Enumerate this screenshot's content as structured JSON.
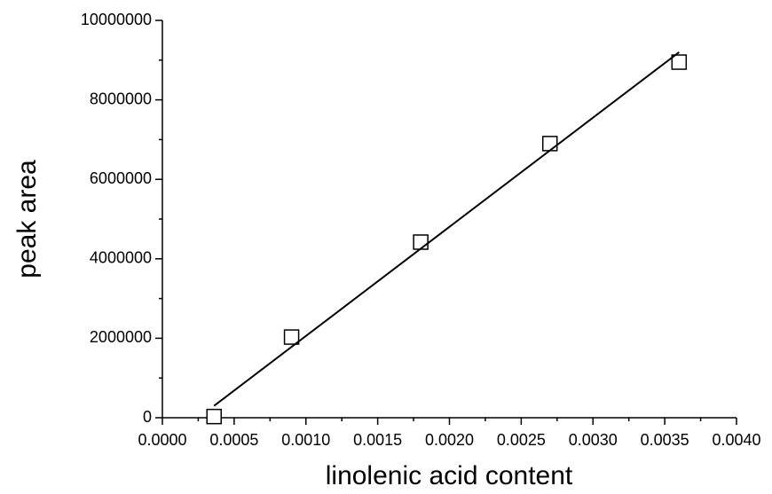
{
  "chart_data": {
    "type": "scatter",
    "x_label": "linolenic acid content",
    "y_label": "peak area",
    "series": [
      {
        "kind": "markers",
        "color": "#000000",
        "x": [
          0.00036,
          0.0009,
          0.0018,
          0.0027,
          0.0036
        ],
        "values": [
          30000,
          2030000,
          4420000,
          6900000,
          8950000
        ]
      },
      {
        "kind": "line",
        "color": "#000000",
        "x": [
          0.00036,
          0.0036
        ],
        "values": [
          300000,
          9200000
        ]
      }
    ],
    "xlim": [
      0,
      0.004
    ],
    "xticks": [
      {
        "value": 0,
        "label": "0.0000"
      },
      {
        "value": 0.0005,
        "label": "0.0005"
      },
      {
        "value": 0.001,
        "label": "0.0010"
      },
      {
        "value": 0.0015,
        "label": "0.0015"
      },
      {
        "value": 0.002,
        "label": "0.0020"
      },
      {
        "value": 0.0025,
        "label": "0.0025"
      },
      {
        "value": 0.003,
        "label": "0.0030"
      },
      {
        "value": 0.0035,
        "label": "0.0035"
      },
      {
        "value": 0.004,
        "label": "0.0040"
      }
    ],
    "x_minor_ticks": [
      0.00025,
      0.00075,
      0.00125,
      0.00175,
      0.00225,
      0.00275,
      0.00325,
      0.00375
    ],
    "ylim": [
      0,
      10000000
    ],
    "yticks": [
      0,
      2000000,
      4000000,
      6000000,
      8000000,
      10000000
    ],
    "y_minor_ticks": [
      1000000,
      3000000,
      5000000,
      7000000,
      9000000
    ],
    "grid": false
  }
}
